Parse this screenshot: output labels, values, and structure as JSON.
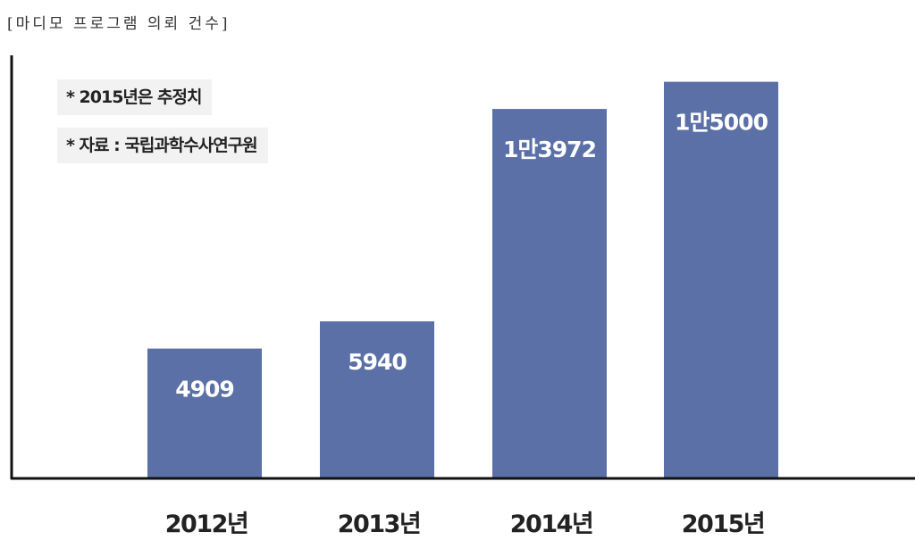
{
  "chart_data": {
    "type": "bar",
    "title": "[마디모 프로그램 의뢰 건수]",
    "categories": [
      "2012년",
      "2013년",
      "2014년",
      "2015년"
    ],
    "values": [
      4909,
      5940,
      13972,
      15000
    ],
    "data_labels": [
      "4909",
      "5940",
      "1만3972",
      "1만5000"
    ],
    "notes": [
      "* 2015년은 추정치",
      "* 자료 : 국립과학수사연구원"
    ],
    "bar_color": "#5b70a6",
    "axis_color": "#111111",
    "ylim": [
      0,
      16000
    ],
    "grid": false,
    "xlabel": "",
    "ylabel": ""
  }
}
